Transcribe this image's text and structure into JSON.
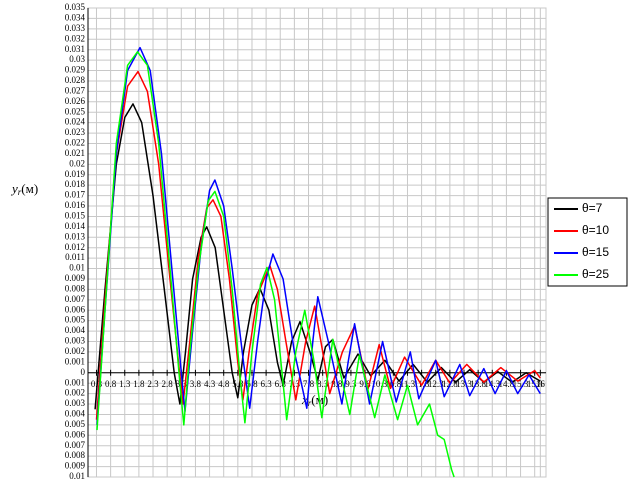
{
  "chart_data": {
    "type": "line",
    "ylabel": "y",
    "ylabel_sub": "r",
    "ylabel_unit": "(м)",
    "xlabel": "x",
    "xlabel_sub": "r",
    "xlabel_unit": "(м)",
    "xlim": [
      0,
      16.2
    ],
    "ylim": [
      -0.01,
      0.035
    ],
    "grid": true,
    "legend": "right",
    "xticks": [
      0.3,
      0.8,
      1.3,
      1.8,
      2.3,
      2.8,
      3.3,
      3.8,
      4.3,
      4.8,
      5.3,
      5.8,
      6.3,
      6.8,
      7.3,
      7.8,
      8.3,
      8.8,
      9.3,
      9.8,
      10.3,
      10.8,
      11.3,
      11.8,
      12.3,
      12.8,
      13.3,
      13.8,
      14.3,
      14.8,
      15.3,
      15.8,
      16
    ],
    "yticks": [
      0.035,
      0.034,
      0.033,
      0.032,
      0.031,
      0.03,
      0.029,
      0.028,
      0.027,
      0.026,
      0.025,
      0.024,
      0.023,
      0.022,
      0.021,
      0.02,
      0.019,
      0.018,
      0.017,
      0.016,
      0.015,
      0.014,
      0.013,
      0.012,
      0.011,
      0.01,
      0.009,
      0.008,
      0.007,
      0.006,
      0.005,
      0.004,
      0.003,
      0.002,
      0.001,
      0,
      {
        "value": -0.001,
        "label": "0.001"
      },
      {
        "value": -0.002,
        "label": "0.002"
      },
      {
        "value": -0.003,
        "label": "0.003"
      },
      {
        "value": -0.004,
        "label": "0.004"
      },
      {
        "value": -0.005,
        "label": "0.005"
      },
      {
        "value": -0.006,
        "label": "0.006"
      },
      {
        "value": -0.007,
        "label": "0.007"
      },
      {
        "value": -0.008,
        "label": "0.008"
      },
      {
        "value": -0.009,
        "label": "0.009"
      },
      {
        "value": -0.01,
        "label": "0.01"
      }
    ],
    "series": [
      {
        "name": "θ=7",
        "color": "#000000",
        "x": [
          0.25,
          0.6,
          1.0,
          1.3,
          1.59,
          1.9,
          2.3,
          2.7,
          3.05,
          3.25,
          3.45,
          3.7,
          4.0,
          4.2,
          4.5,
          4.8,
          5.1,
          5.3,
          5.5,
          5.8,
          6.08,
          6.4,
          6.7,
          6.9,
          7.2,
          7.5,
          7.85,
          8.13,
          8.4,
          8.66,
          9.05,
          9.55,
          10.0,
          10.5,
          11.0,
          11.5,
          12.0,
          12.5,
          13.0,
          13.5,
          14.0,
          14.5,
          15.0,
          15.5,
          16
        ],
        "values": [
          -0.0035,
          0.008,
          0.02,
          0.0245,
          0.0258,
          0.024,
          0.017,
          0.008,
          0,
          -0.003,
          0.002,
          0.009,
          0.013,
          0.014,
          0.012,
          0.006,
          0,
          -0.0024,
          0.002,
          0.0065,
          0.0081,
          0.006,
          0.001,
          -0.0012,
          0.003,
          0.0049,
          0.002,
          -0.0007,
          0.0025,
          0.0032,
          -0.0005,
          0.0018,
          -0.0003,
          0.0012,
          -0.0008,
          0.0008,
          -0.0009,
          0.0005,
          -0.0009,
          0.0003,
          -0.0009,
          0.0001,
          -0.0009,
          0,
          -0.0008
        ]
      },
      {
        "name": "θ=10",
        "color": "#ff0000",
        "x": [
          0.3,
          0.6,
          1.0,
          1.4,
          1.77,
          2.1,
          2.5,
          2.9,
          3.2,
          3.36,
          3.6,
          3.9,
          4.2,
          4.42,
          4.7,
          5.0,
          5.3,
          5.48,
          5.7,
          6.0,
          6.43,
          6.7,
          7.0,
          7.35,
          7.7,
          8.02,
          8.3,
          8.55,
          9.0,
          9.43,
          9.9,
          10.3,
          10.7,
          11.2,
          11.8,
          12.3,
          12.8,
          13.4,
          14.0,
          14.6,
          15.2,
          15.8,
          16
        ],
        "values": [
          -0.0045,
          0.007,
          0.021,
          0.0275,
          0.0289,
          0.027,
          0.02,
          0.009,
          0.001,
          -0.003,
          0.003,
          0.011,
          0.0158,
          0.0166,
          0.015,
          0.009,
          0.001,
          -0.0026,
          0.002,
          0.0075,
          0.0103,
          0.008,
          0.003,
          -0.0026,
          0.003,
          0.0064,
          0.002,
          -0.002,
          0.002,
          0.0045,
          -0.0016,
          0.0027,
          -0.0015,
          0.0015,
          -0.0012,
          0.0012,
          -0.001,
          0.0008,
          -0.0009,
          0.0005,
          -0.0008,
          0.0002,
          -0.0005
        ]
      },
      {
        "name": "θ=15",
        "color": "#0000ff",
        "x": [
          0.32,
          0.6,
          1.0,
          1.4,
          1.84,
          2.2,
          2.6,
          3.0,
          3.3,
          3.43,
          3.7,
          4.0,
          4.3,
          4.49,
          4.8,
          5.1,
          5.5,
          5.72,
          6.0,
          6.3,
          6.54,
          6.9,
          7.3,
          7.74,
          7.95,
          8.13,
          8.5,
          8.98,
          9.2,
          9.43,
          9.96,
          10.42,
          10.9,
          11.4,
          11.7,
          12.3,
          12.6,
          13.15,
          13.5,
          14.0,
          14.4,
          14.8,
          15.2,
          15.6,
          16
        ],
        "values": [
          -0.005,
          0.006,
          0.021,
          0.029,
          0.0312,
          0.029,
          0.021,
          0.009,
          0,
          -0.0037,
          0.004,
          0.012,
          0.0175,
          0.0185,
          0.016,
          0.01,
          0.001,
          -0.0034,
          0.003,
          0.009,
          0.0114,
          0.009,
          0.002,
          -0.0034,
          0.003,
          0.0073,
          0.003,
          -0.003,
          0.001,
          0.0047,
          -0.003,
          0.003,
          -0.0028,
          0.002,
          -0.0025,
          0.0012,
          -0.0023,
          0.0008,
          -0.0022,
          0.0004,
          -0.002,
          0.0002,
          -0.002,
          -0.0002,
          -0.002
        ]
      },
      {
        "name": "θ=25",
        "color": "#00ff00",
        "x": [
          0.32,
          0.6,
          1.0,
          1.4,
          1.75,
          2.1,
          2.5,
          2.9,
          3.25,
          3.39,
          3.6,
          3.9,
          4.25,
          4.49,
          4.8,
          5.1,
          5.4,
          5.55,
          5.8,
          6.1,
          6.33,
          6.6,
          6.9,
          7.03,
          7.35,
          7.67,
          8.0,
          8.27,
          8.66,
          9.26,
          9.6,
          10.14,
          10.5,
          10.95,
          11.3,
          11.66,
          12.08,
          12.37,
          12.6,
          12.86,
          12.95
        ],
        "values": [
          -0.0055,
          0.006,
          0.022,
          0.0295,
          0.0308,
          0.0295,
          0.022,
          0.01,
          -0.001,
          -0.005,
          0.002,
          0.01,
          0.0165,
          0.0174,
          0.015,
          0.008,
          -0.001,
          -0.0048,
          0.002,
          0.0085,
          0.0101,
          0.007,
          -0.001,
          -0.0045,
          0.002,
          0.006,
          0.001,
          -0.0043,
          0.0032,
          -0.004,
          0.0017,
          -0.0043,
          -0.0002,
          -0.0045,
          -0.0012,
          -0.005,
          -0.003,
          -0.006,
          -0.0064,
          -0.0093,
          -0.01
        ]
      }
    ]
  }
}
